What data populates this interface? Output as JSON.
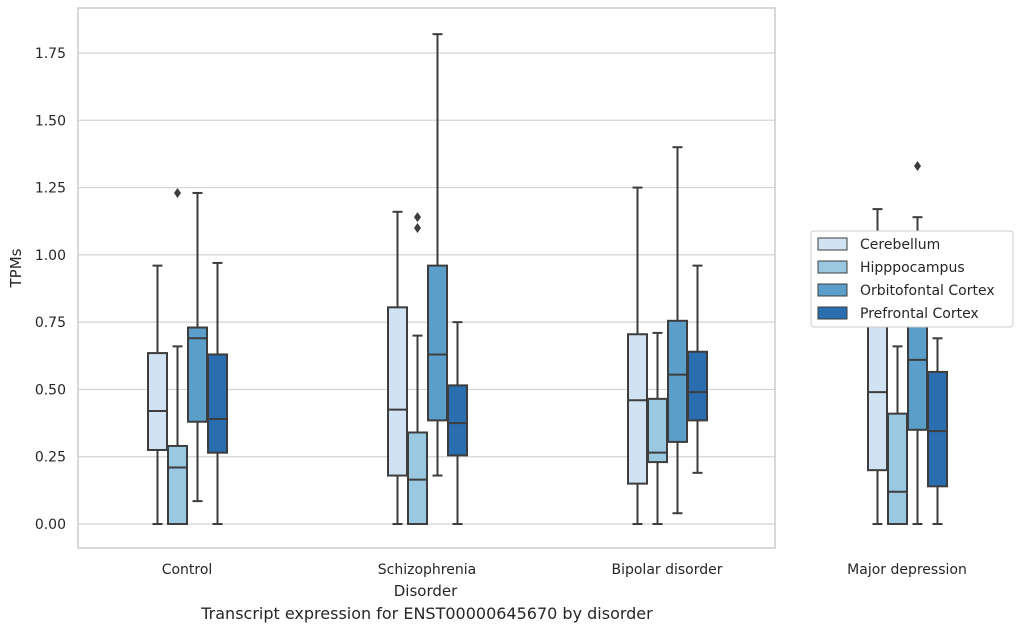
{
  "caption": "Transcript expression for ENST00000645670 by disorder",
  "chart_data": {
    "type": "box",
    "title": "",
    "xlabel": "Disorder",
    "ylabel": "TPMs",
    "ylim": [
      -0.09,
      1.93
    ],
    "yticks": [
      0.0,
      0.25,
      0.5,
      0.75,
      1.0,
      1.25,
      1.5,
      1.75
    ],
    "ytick_labels": [
      "0.00",
      "0.25",
      "0.50",
      "0.75",
      "1.00",
      "1.25",
      "1.50",
      "1.75"
    ],
    "grid": "horizontal",
    "legend_position": "right",
    "categories": [
      "Control",
      "Schizophrenia",
      "Bipolar disorder",
      "Major depression"
    ],
    "series": [
      {
        "name": "Cerebellum",
        "color": "#d1e2f2",
        "boxes": [
          {
            "min": 0.0,
            "q1": 0.275,
            "median": 0.42,
            "q3": 0.635,
            "max": 0.96,
            "outliers": []
          },
          {
            "min": 0.0,
            "q1": 0.18,
            "median": 0.425,
            "q3": 0.805,
            "max": 1.16,
            "outliers": []
          },
          {
            "min": 0.0,
            "q1": 0.15,
            "median": 0.46,
            "q3": 0.705,
            "max": 1.25,
            "outliers": []
          },
          {
            "min": 0.0,
            "q1": 0.2,
            "median": 0.49,
            "q3": 0.755,
            "max": 1.17,
            "outliers": []
          }
        ]
      },
      {
        "name": "Hipppocampus",
        "color": "#9ac8e0",
        "boxes": [
          {
            "min": 0.0,
            "q1": 0.0,
            "median": 0.21,
            "q3": 0.29,
            "max": 0.66,
            "outliers": [
              1.23
            ]
          },
          {
            "min": 0.0,
            "q1": 0.0,
            "median": 0.165,
            "q3": 0.34,
            "max": 0.7,
            "outliers": [
              1.1,
              1.14
            ]
          },
          {
            "min": 0.0,
            "q1": 0.23,
            "median": 0.265,
            "q3": 0.465,
            "max": 0.71,
            "outliers": []
          },
          {
            "min": 0.0,
            "q1": 0.0,
            "median": 0.12,
            "q3": 0.41,
            "max": 0.66,
            "outliers": []
          }
        ]
      },
      {
        "name": "Orbitofontal Cortex",
        "color": "#5a9ec9",
        "boxes": [
          {
            "min": 0.085,
            "q1": 0.38,
            "median": 0.69,
            "q3": 0.73,
            "max": 1.23,
            "outliers": []
          },
          {
            "min": 0.18,
            "q1": 0.385,
            "median": 0.63,
            "q3": 0.96,
            "max": 1.82,
            "outliers": []
          },
          {
            "min": 0.04,
            "q1": 0.305,
            "median": 0.555,
            "q3": 0.755,
            "max": 1.4,
            "outliers": []
          },
          {
            "min": 0.0,
            "q1": 0.35,
            "median": 0.61,
            "q3": 0.74,
            "max": 1.14,
            "outliers": [
              1.33
            ]
          }
        ]
      },
      {
        "name": "Prefrontal Cortex",
        "color": "#2a6eb0",
        "boxes": [
          {
            "min": 0.0,
            "q1": 0.265,
            "median": 0.39,
            "q3": 0.63,
            "max": 0.97,
            "outliers": []
          },
          {
            "min": 0.0,
            "q1": 0.255,
            "median": 0.375,
            "q3": 0.515,
            "max": 0.75,
            "outliers": []
          },
          {
            "min": 0.19,
            "q1": 0.385,
            "median": 0.49,
            "q3": 0.64,
            "max": 0.96,
            "outliers": []
          },
          {
            "min": 0.0,
            "q1": 0.14,
            "median": 0.345,
            "q3": 0.565,
            "max": 0.69,
            "outliers": []
          }
        ]
      }
    ]
  }
}
